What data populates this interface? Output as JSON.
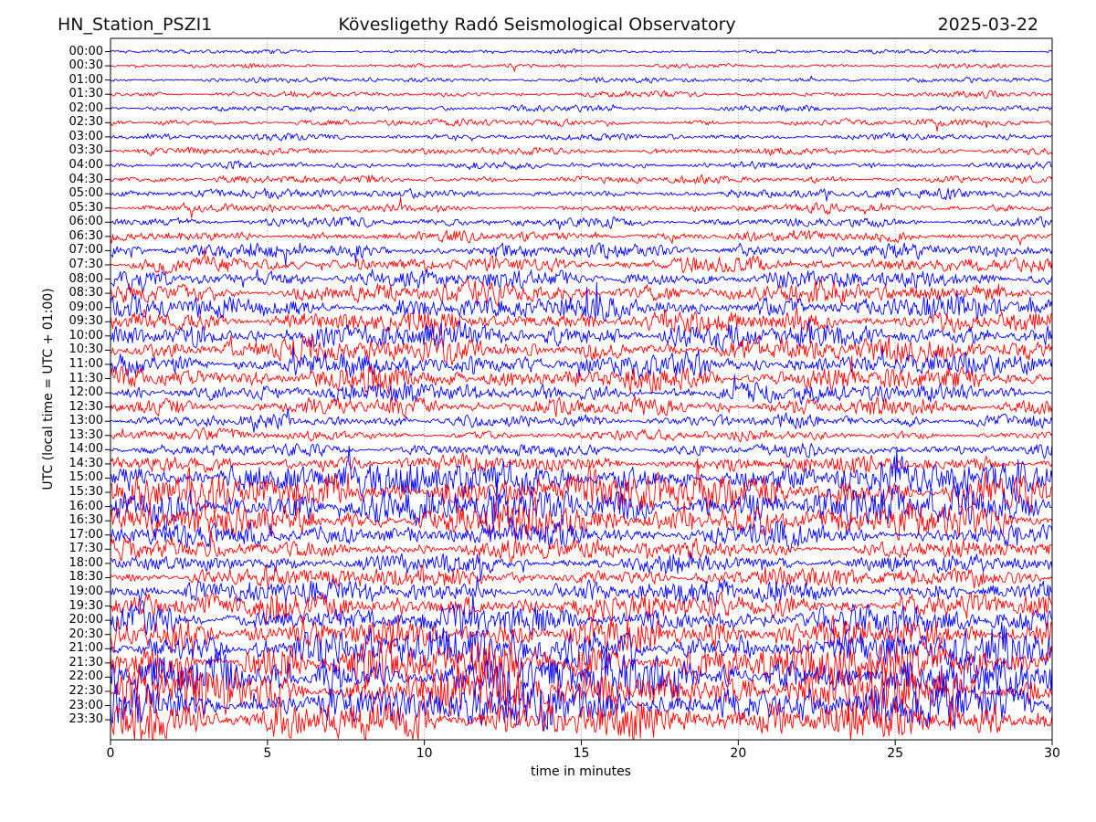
{
  "header": {
    "station": "HN_Station_PSZI1",
    "observatory": "Kövesligethy Radó Seismological Observatory",
    "date": "2025-03-22"
  },
  "axes": {
    "xlabel": "time in minutes",
    "ylabel": "UTC (local time = UTC + 01:00)"
  },
  "colors": {
    "trace_blue": "#0000ff",
    "trace_red": "#ff0000",
    "grid": "#999999",
    "frame": "#000000"
  },
  "chart_data": {
    "type": "line",
    "subtype": "helicorder_day_plot",
    "title": "Kövesligethy Radó Seismological Observatory",
    "station": "HN_Station_PSZI1",
    "date": "2025-03-22",
    "xlabel": "time in minutes",
    "ylabel": "UTC (local time = UTC + 01:00)",
    "xlim": [
      0,
      30
    ],
    "x_ticks": [
      0,
      5,
      10,
      15,
      20,
      25,
      30
    ],
    "grid_minutes": [
      5,
      10,
      15,
      20,
      25
    ],
    "minutes_per_row": 30,
    "legend": "alternating trace colors per 30-minute row: blue then red",
    "rows": [
      {
        "time": "00:00",
        "color": "#0000ff",
        "relative_amplitude": 1.5
      },
      {
        "time": "00:30",
        "color": "#ff0000",
        "relative_amplitude": 1.6
      },
      {
        "time": "01:00",
        "color": "#0000ff",
        "relative_amplitude": 2.0
      },
      {
        "time": "01:30",
        "color": "#ff0000",
        "relative_amplitude": 2.2
      },
      {
        "time": "02:00",
        "color": "#0000ff",
        "relative_amplitude": 2.4
      },
      {
        "time": "02:30",
        "color": "#ff0000",
        "relative_amplitude": 2.6
      },
      {
        "time": "03:00",
        "color": "#0000ff",
        "relative_amplitude": 2.6
      },
      {
        "time": "03:30",
        "color": "#ff0000",
        "relative_amplitude": 2.8
      },
      {
        "time": "04:00",
        "color": "#0000ff",
        "relative_amplitude": 2.6
      },
      {
        "time": "04:30",
        "color": "#ff0000",
        "relative_amplitude": 3.0
      },
      {
        "time": "05:00",
        "color": "#0000ff",
        "relative_amplitude": 3.4
      },
      {
        "time": "05:30",
        "color": "#ff0000",
        "relative_amplitude": 3.0
      },
      {
        "time": "06:00",
        "color": "#0000ff",
        "relative_amplitude": 3.6
      },
      {
        "time": "06:30",
        "color": "#ff0000",
        "relative_amplitude": 4.0
      },
      {
        "time": "07:00",
        "color": "#0000ff",
        "relative_amplitude": 5.5
      },
      {
        "time": "07:30",
        "color": "#ff0000",
        "relative_amplitude": 6.0
      },
      {
        "time": "08:00",
        "color": "#0000ff",
        "relative_amplitude": 7.0
      },
      {
        "time": "08:30",
        "color": "#ff0000",
        "relative_amplitude": 8.0
      },
      {
        "time": "09:00",
        "color": "#0000ff",
        "relative_amplitude": 9.0
      },
      {
        "time": "09:30",
        "color": "#ff0000",
        "relative_amplitude": 9.0
      },
      {
        "time": "10:00",
        "color": "#0000ff",
        "relative_amplitude": 10.0
      },
      {
        "time": "10:30",
        "color": "#ff0000",
        "relative_amplitude": 9.0
      },
      {
        "time": "11:00",
        "color": "#0000ff",
        "relative_amplitude": 9.0
      },
      {
        "time": "11:30",
        "color": "#ff0000",
        "relative_amplitude": 9.0
      },
      {
        "time": "12:00",
        "color": "#0000ff",
        "relative_amplitude": 7.5
      },
      {
        "time": "12:30",
        "color": "#ff0000",
        "relative_amplitude": 7.0
      },
      {
        "time": "13:00",
        "color": "#0000ff",
        "relative_amplitude": 5.0
      },
      {
        "time": "13:30",
        "color": "#ff0000",
        "relative_amplitude": 4.0
      },
      {
        "time": "14:00",
        "color": "#0000ff",
        "relative_amplitude": 5.0
      },
      {
        "time": "14:30",
        "color": "#ff0000",
        "relative_amplitude": 6.5
      },
      {
        "time": "15:00",
        "color": "#0000ff",
        "relative_amplitude": 13.0
      },
      {
        "time": "15:30",
        "color": "#ff0000",
        "relative_amplitude": 15.0
      },
      {
        "time": "16:00",
        "color": "#0000ff",
        "relative_amplitude": 15.0
      },
      {
        "time": "16:30",
        "color": "#ff0000",
        "relative_amplitude": 13.0
      },
      {
        "time": "17:00",
        "color": "#0000ff",
        "relative_amplitude": 9.0
      },
      {
        "time": "17:30",
        "color": "#ff0000",
        "relative_amplitude": 7.5
      },
      {
        "time": "18:00",
        "color": "#0000ff",
        "relative_amplitude": 7.5
      },
      {
        "time": "18:30",
        "color": "#ff0000",
        "relative_amplitude": 7.5
      },
      {
        "time": "19:00",
        "color": "#0000ff",
        "relative_amplitude": 9.0
      },
      {
        "time": "19:30",
        "color": "#ff0000",
        "relative_amplitude": 10.5
      },
      {
        "time": "20:00",
        "color": "#0000ff",
        "relative_amplitude": 11.0
      },
      {
        "time": "20:30",
        "color": "#ff0000",
        "relative_amplitude": 12.5
      },
      {
        "time": "21:00",
        "color": "#0000ff",
        "relative_amplitude": 15.0
      },
      {
        "time": "21:30",
        "color": "#ff0000",
        "relative_amplitude": 17.0
      },
      {
        "time": "22:00",
        "color": "#0000ff",
        "relative_amplitude": 17.0
      },
      {
        "time": "22:30",
        "color": "#ff0000",
        "relative_amplitude": 18.0
      },
      {
        "time": "23:00",
        "color": "#0000ff",
        "relative_amplitude": 16.0
      },
      {
        "time": "23:30",
        "color": "#ff0000",
        "relative_amplitude": 16.0
      }
    ]
  }
}
